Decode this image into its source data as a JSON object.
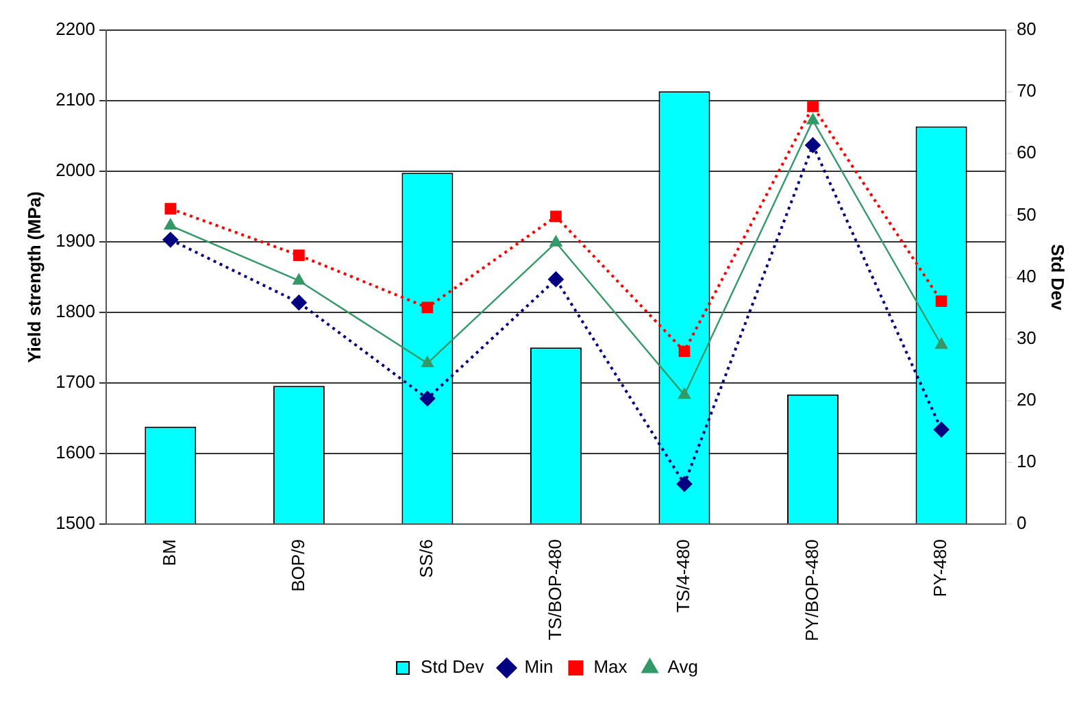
{
  "chart_data": {
    "type": "line",
    "ylabel": "Yield strength (MPa)",
    "y2label": "Std Dev",
    "categories": [
      "BM",
      "BOP/9",
      "SS/6",
      "TS/BOP-480",
      "TS/4-480",
      "PY/BOP-480",
      "PY-480"
    ],
    "series": [
      {
        "name": "Std Dev",
        "type": "bar",
        "axis": "y2",
        "color": "#00ffff",
        "values": [
          15.8,
          22.4,
          56.9,
          28.6,
          70.1,
          21.0,
          64.4
        ]
      },
      {
        "name": "Min",
        "color": "#000080",
        "marker": "diamond",
        "line_style": "dotted",
        "values": [
          1903,
          1814,
          1678,
          1847,
          1557,
          2037,
          1634
        ]
      },
      {
        "name": "Max",
        "color": "#ff0000",
        "marker": "square",
        "line_style": "dotted",
        "values": [
          1947,
          1881,
          1807,
          1936,
          1745,
          2092,
          1816
        ]
      },
      {
        "name": "Avg",
        "color": "#339966",
        "marker": "triangle",
        "line_style": "solid",
        "values": [
          1923,
          1845,
          1728,
          1899,
          1683,
          2072,
          1754
        ]
      }
    ],
    "ylim": [
      1500,
      2200
    ],
    "yticks": [
      1500,
      1600,
      1700,
      1800,
      1900,
      2000,
      2100,
      2200
    ],
    "y2lim": [
      0,
      80
    ],
    "y2ticks": [
      0,
      10,
      20,
      30,
      40,
      50,
      60,
      70,
      80
    ],
    "grid": "y",
    "legend": "bottom"
  }
}
